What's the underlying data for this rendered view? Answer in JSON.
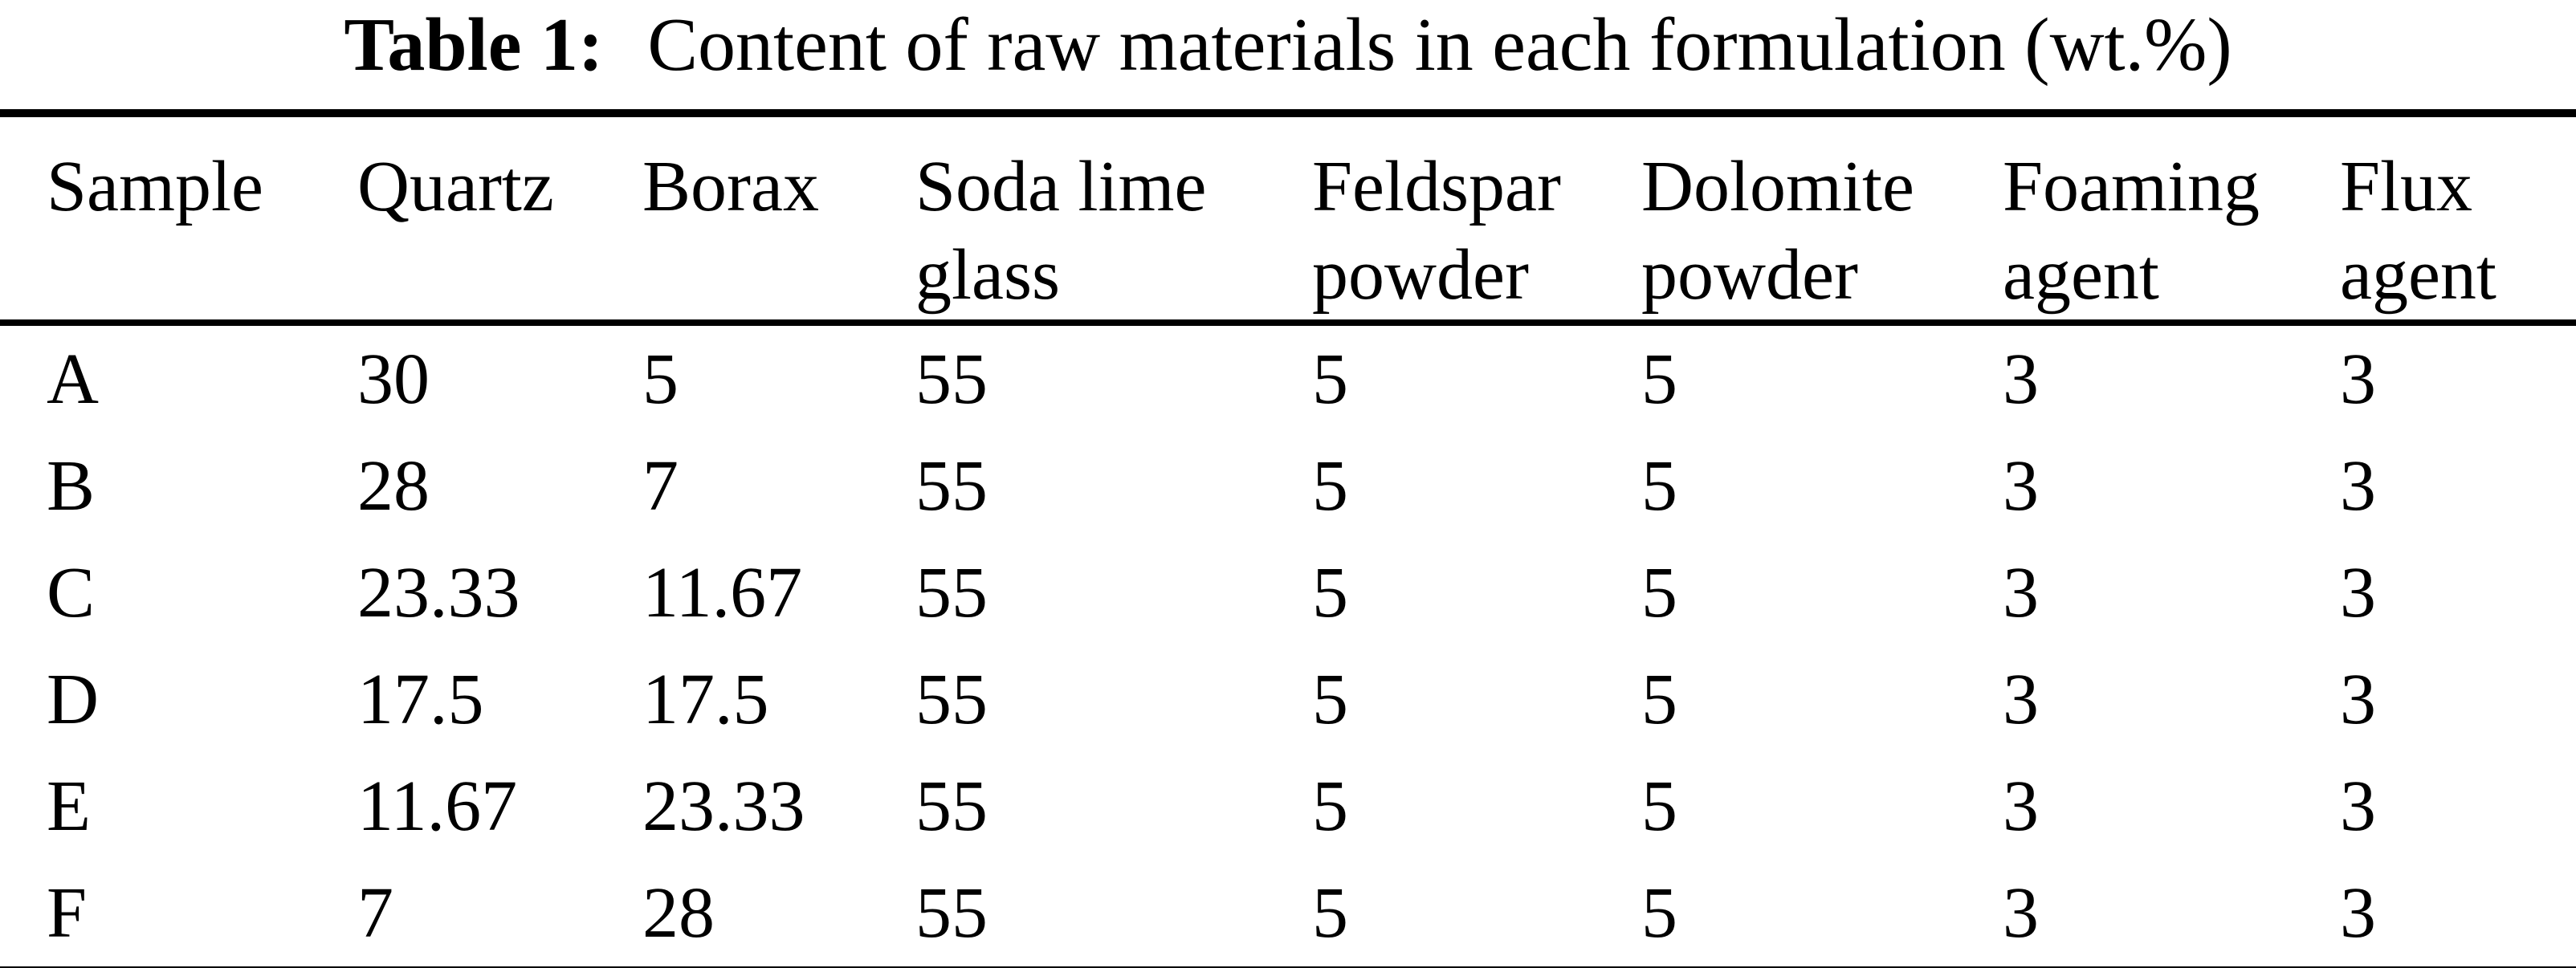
{
  "title": {
    "label": "Table 1:",
    "text": "Content of raw materials in each formulation (wt.%)"
  },
  "table": {
    "columns": [
      {
        "line1": "Sample",
        "line2": ""
      },
      {
        "line1": "Quartz",
        "line2": ""
      },
      {
        "line1": "Borax",
        "line2": ""
      },
      {
        "line1": "Soda lime",
        "line2": "glass"
      },
      {
        "line1": "Feldspar",
        "line2": "powder"
      },
      {
        "line1": "Dolomite",
        "line2": "powder"
      },
      {
        "line1": "Foaming",
        "line2": "agent"
      },
      {
        "line1": "Flux",
        "line2": "agent"
      }
    ],
    "rows": [
      [
        "A",
        "30",
        "5",
        "55",
        "5",
        "5",
        "3",
        "3"
      ],
      [
        "B",
        "28",
        "7",
        "55",
        "5",
        "5",
        "3",
        "3"
      ],
      [
        "C",
        "23.33",
        "11.67",
        "55",
        "5",
        "5",
        "3",
        "3"
      ],
      [
        "D",
        "17.5",
        "17.5",
        "55",
        "5",
        "5",
        "3",
        "3"
      ],
      [
        "E",
        "11.67",
        "23.33",
        "55",
        "5",
        "5",
        "3",
        "3"
      ],
      [
        "F",
        "7",
        "28",
        "55",
        "5",
        "5",
        "3",
        "3"
      ]
    ]
  },
  "colors": {
    "text": "#000000",
    "background": "#ffffff",
    "rule": "#000000"
  }
}
